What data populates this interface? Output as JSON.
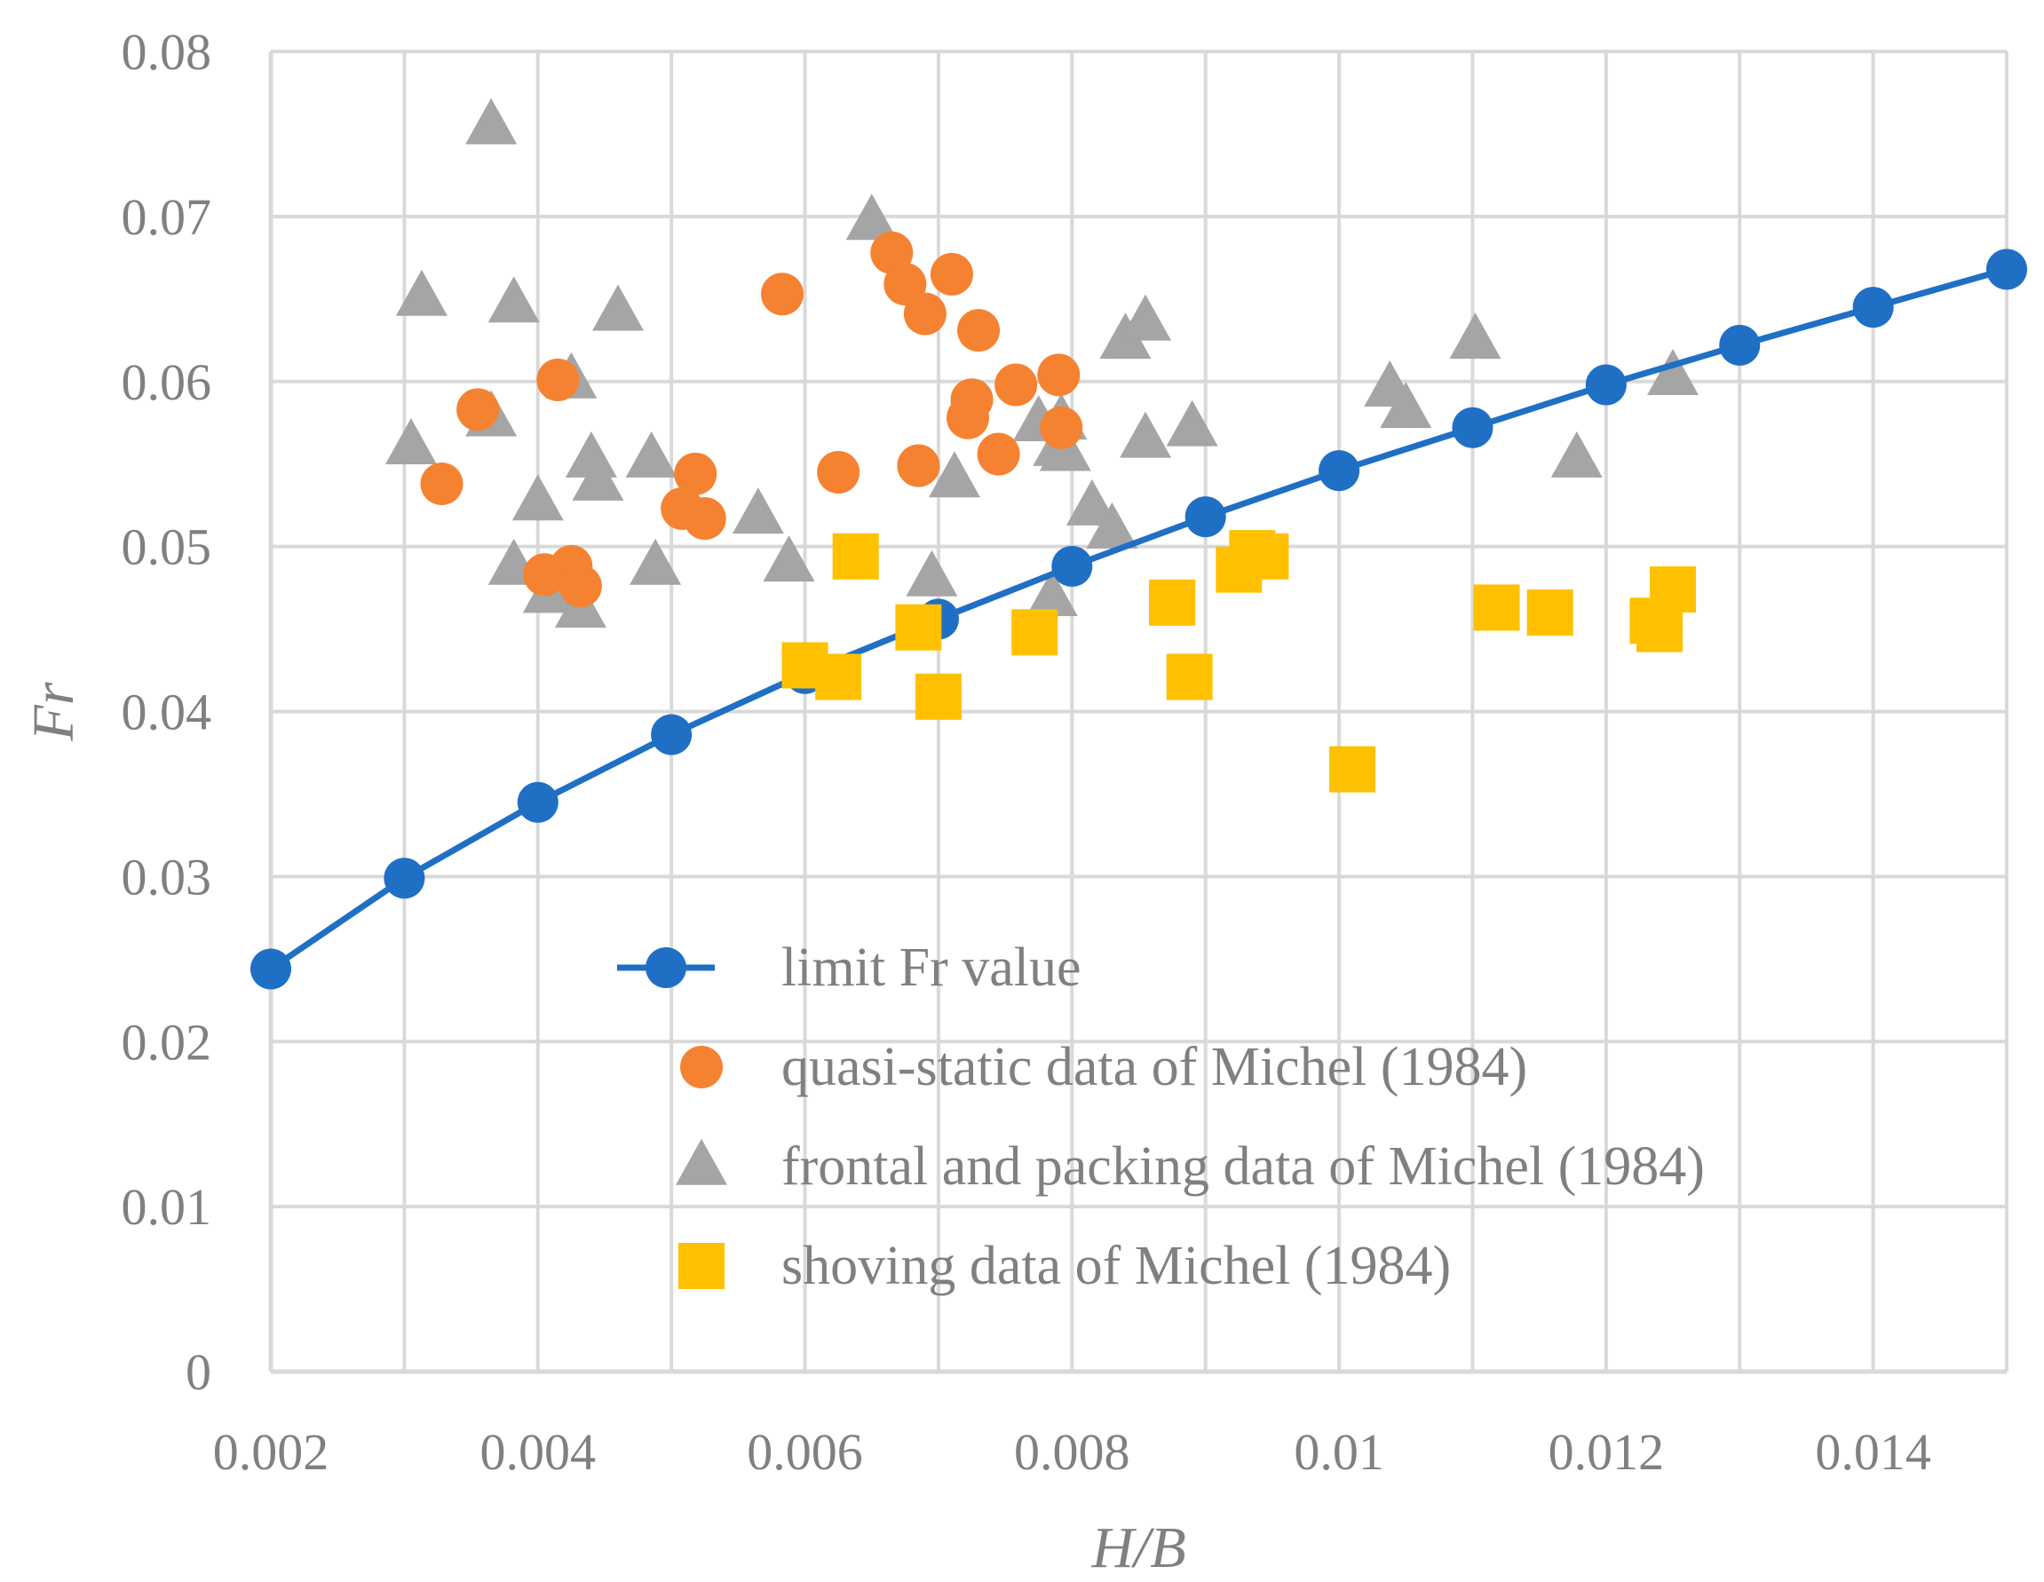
{
  "chart_data": {
    "type": "scatter",
    "title": "",
    "xlabel": "H/B",
    "ylabel": "Fr",
    "xlim": [
      0.002,
      0.015
    ],
    "ylim": [
      0,
      0.08
    ],
    "grid": true,
    "legend_position": "center-bottom",
    "x_ticks": [
      0.002,
      0.003,
      0.004,
      0.005,
      0.006,
      0.007,
      0.008,
      0.009,
      0.01,
      0.011,
      0.012,
      0.013,
      0.014,
      0.015
    ],
    "x_tick_labels": [
      "0.002",
      "0.004",
      "0.006",
      "0.008",
      "0.01",
      "0.012",
      "0.014"
    ],
    "x_tick_label_values": [
      0.002,
      0.004,
      0.006,
      0.008,
      0.01,
      0.012,
      0.014
    ],
    "y_tick_labels": [
      "0",
      "0.01",
      "0.02",
      "0.03",
      "0.04",
      "0.05",
      "0.06",
      "0.07",
      "0.08"
    ],
    "y_tick_label_values": [
      0,
      0.01,
      0.02,
      0.03,
      0.04,
      0.05,
      0.06,
      0.07,
      0.08
    ],
    "series": [
      {
        "name": "limit Fr value",
        "marker": "circle-line",
        "color": "#1f6fc5",
        "points": [
          [
            0.002,
            0.0244
          ],
          [
            0.003,
            0.0299
          ],
          [
            0.004,
            0.0345
          ],
          [
            0.005,
            0.0386
          ],
          [
            0.006,
            0.0423
          ],
          [
            0.007,
            0.0456
          ],
          [
            0.008,
            0.0488
          ],
          [
            0.009,
            0.0518
          ],
          [
            0.01,
            0.0546
          ],
          [
            0.011,
            0.0572
          ],
          [
            0.012,
            0.0598
          ],
          [
            0.013,
            0.0622
          ],
          [
            0.014,
            0.0645
          ],
          [
            0.015,
            0.0668
          ]
        ]
      },
      {
        "name": "quasi-static data of Michel (1984)",
        "marker": "circle",
        "color": "#f58231",
        "points": [
          [
            0.00328,
            0.0538
          ],
          [
            0.00355,
            0.0583
          ],
          [
            0.00415,
            0.0601
          ],
          [
            0.00405,
            0.0483
          ],
          [
            0.00425,
            0.0488
          ],
          [
            0.00432,
            0.0476
          ],
          [
            0.00508,
            0.0523
          ],
          [
            0.00518,
            0.0544
          ],
          [
            0.00525,
            0.0517
          ],
          [
            0.00583,
            0.0653
          ],
          [
            0.00625,
            0.0545
          ],
          [
            0.00665,
            0.0678
          ],
          [
            0.00675,
            0.0659
          ],
          [
            0.00685,
            0.0549
          ],
          [
            0.0069,
            0.0641
          ],
          [
            0.0071,
            0.0665
          ],
          [
            0.00722,
            0.0578
          ],
          [
            0.00725,
            0.0589
          ],
          [
            0.0073,
            0.0631
          ],
          [
            0.00745,
            0.0556
          ],
          [
            0.00758,
            0.0598
          ],
          [
            0.0079,
            0.0604
          ],
          [
            0.00792,
            0.0572
          ]
        ]
      },
      {
        "name": "frontal and packing data of Michel (1984)",
        "marker": "triangle",
        "color": "#a5a5a5",
        "points": [
          [
            0.00305,
            0.0561
          ],
          [
            0.00313,
            0.0651
          ],
          [
            0.00365,
            0.0755
          ],
          [
            0.00365,
            0.0578
          ],
          [
            0.00382,
            0.0647
          ],
          [
            0.00382,
            0.0488
          ],
          [
            0.004,
            0.0527
          ],
          [
            0.00408,
            0.0471
          ],
          [
            0.00425,
            0.0601
          ],
          [
            0.00432,
            0.0462
          ],
          [
            0.0044,
            0.0553
          ],
          [
            0.00445,
            0.0539
          ],
          [
            0.0046,
            0.0642
          ],
          [
            0.00485,
            0.0553
          ],
          [
            0.00488,
            0.0488
          ],
          [
            0.00565,
            0.0519
          ],
          [
            0.00588,
            0.049
          ],
          [
            0.0065,
            0.0697
          ],
          [
            0.00695,
            0.0481
          ],
          [
            0.00712,
            0.0541
          ],
          [
            0.00775,
            0.0575
          ],
          [
            0.00785,
            0.0469
          ],
          [
            0.0079,
            0.056
          ],
          [
            0.00792,
            0.0576
          ],
          [
            0.00795,
            0.0557
          ],
          [
            0.00815,
            0.0524
          ],
          [
            0.0083,
            0.051
          ],
          [
            0.0084,
            0.0625
          ],
          [
            0.00855,
            0.0636
          ],
          [
            0.00855,
            0.0565
          ],
          [
            0.0089,
            0.0572
          ],
          [
            0.01038,
            0.0596
          ],
          [
            0.0105,
            0.0583
          ],
          [
            0.01102,
            0.0625
          ],
          [
            0.01178,
            0.0553
          ],
          [
            0.0125,
            0.0603
          ]
        ]
      },
      {
        "name": "shoving data of Michel (1984)",
        "marker": "square",
        "color": "#ffc000",
        "points": [
          [
            0.006,
            0.0428
          ],
          [
            0.00625,
            0.0421
          ],
          [
            0.00638,
            0.0494
          ],
          [
            0.00685,
            0.0451
          ],
          [
            0.007,
            0.0409
          ],
          [
            0.00772,
            0.0448
          ],
          [
            0.00875,
            0.0466
          ],
          [
            0.00888,
            0.0421
          ],
          [
            0.00925,
            0.0486
          ],
          [
            0.00935,
            0.0496
          ],
          [
            0.00945,
            0.0494
          ],
          [
            0.0101,
            0.0365
          ],
          [
            0.01118,
            0.0463
          ],
          [
            0.01158,
            0.046
          ],
          [
            0.01235,
            0.0455
          ],
          [
            0.0124,
            0.045
          ],
          [
            0.0125,
            0.0474
          ]
        ]
      }
    ]
  }
}
